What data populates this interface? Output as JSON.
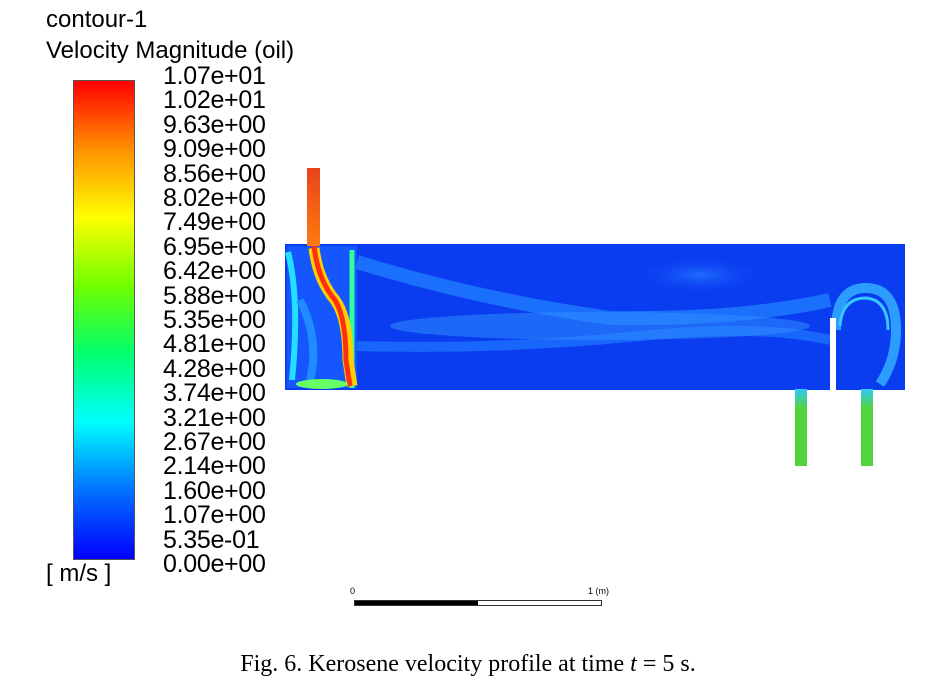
{
  "legend": {
    "title": "contour-1",
    "subtitle": "Velocity Magnitude (oil)",
    "unit": "[ m/s ]",
    "ticks": [
      "1.07e+01",
      "1.02e+01",
      "9.63e+00",
      "9.09e+00",
      "8.56e+00",
      "8.02e+00",
      "7.49e+00",
      "6.95e+00",
      "6.42e+00",
      "5.88e+00",
      "5.35e+00",
      "4.81e+00",
      "4.28e+00",
      "3.74e+00",
      "3.21e+00",
      "2.67e+00",
      "2.14e+00",
      "1.60e+00",
      "1.07e+00",
      "5.35e-01",
      "0.00e+00"
    ],
    "colormap": [
      "#0000ff",
      "#0070ff",
      "#00ffff",
      "#00ff70",
      "#70ff00",
      "#ffff00",
      "#ff9000",
      "#ff0000"
    ]
  },
  "scale_bar": {
    "start_label": "0",
    "end_label": "1 (m)"
  },
  "colors": {
    "domain_base": "#0a3cf0",
    "inlet_jet": "#e8441a",
    "outlet_fill": "#52d43c"
  },
  "caption": {
    "prefix": "Fig. 6.  Kerosene velocity profile at time ",
    "variable": "t",
    "suffix": " = 5 s."
  }
}
